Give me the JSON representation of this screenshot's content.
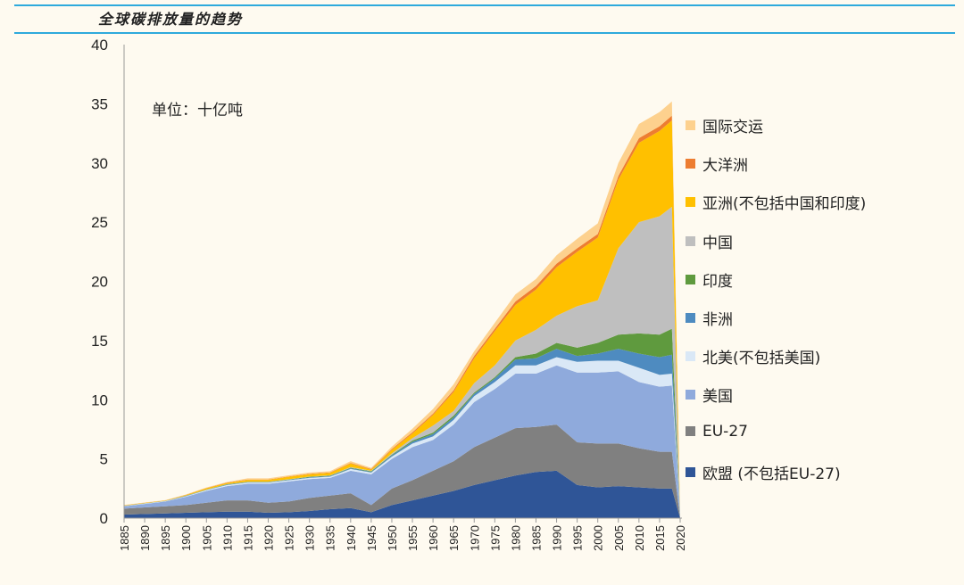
{
  "title": "全球碳排放量的趋势",
  "chart_data": {
    "type": "area",
    "stacked": true,
    "title": "全球碳排放量的趋势",
    "unit_label": "单位：十亿吨",
    "xlabel": "",
    "ylabel": "",
    "ylim": [
      0,
      40
    ],
    "yticks": [
      0,
      5,
      10,
      15,
      20,
      25,
      30,
      35,
      40
    ],
    "xlim": [
      1885,
      2020
    ],
    "xticks": [
      1885,
      1890,
      1895,
      1900,
      1905,
      1910,
      1915,
      1920,
      1925,
      1930,
      1935,
      1940,
      1945,
      1950,
      1955,
      1960,
      1965,
      1970,
      1975,
      1980,
      1985,
      1990,
      1995,
      2000,
      2005,
      2010,
      2015,
      2020
    ],
    "grid": false,
    "legend_position": "right",
    "x": [
      1885,
      1890,
      1895,
      1900,
      1905,
      1910,
      1915,
      1920,
      1925,
      1930,
      1935,
      1940,
      1945,
      1950,
      1955,
      1960,
      1965,
      1970,
      1975,
      1980,
      1985,
      1990,
      1995,
      2000,
      2005,
      2010,
      2015,
      2018,
      2020
    ],
    "series": [
      {
        "name": "欧盟 (不包括EU-27)",
        "color": "#2f5597",
        "values": [
          0.3,
          0.35,
          0.4,
          0.45,
          0.5,
          0.55,
          0.55,
          0.45,
          0.5,
          0.6,
          0.75,
          0.85,
          0.5,
          1.1,
          1.5,
          1.9,
          2.3,
          2.8,
          3.2,
          3.6,
          3.9,
          4.0,
          2.8,
          2.6,
          2.7,
          2.6,
          2.5,
          2.5,
          0
        ]
      },
      {
        "name": "EU-27",
        "color": "#808080",
        "values": [
          0.5,
          0.55,
          0.6,
          0.65,
          0.8,
          0.95,
          0.95,
          0.85,
          0.9,
          1.1,
          1.15,
          1.25,
          0.6,
          1.4,
          1.7,
          2.1,
          2.5,
          3.2,
          3.6,
          4.0,
          3.8,
          3.9,
          3.6,
          3.7,
          3.6,
          3.3,
          3.1,
          3.1,
          0
        ]
      },
      {
        "name": "美国",
        "color": "#8faadc",
        "values": [
          0.2,
          0.3,
          0.4,
          0.7,
          1.0,
          1.2,
          1.4,
          1.6,
          1.7,
          1.6,
          1.5,
          1.9,
          2.6,
          2.5,
          2.8,
          2.6,
          3.1,
          3.8,
          4.1,
          4.6,
          4.5,
          5.0,
          5.9,
          6.0,
          6.1,
          5.6,
          5.5,
          5.6,
          0
        ]
      },
      {
        "name": "北美(不包括美国)",
        "color": "#dae8f6",
        "values": [
          0.02,
          0.03,
          0.03,
          0.05,
          0.07,
          0.1,
          0.1,
          0.1,
          0.1,
          0.1,
          0.1,
          0.15,
          0.15,
          0.2,
          0.3,
          0.3,
          0.4,
          0.5,
          0.6,
          0.7,
          0.7,
          0.7,
          0.9,
          1.0,
          0.9,
          1.2,
          1.0,
          1.0,
          0
        ]
      },
      {
        "name": "非洲",
        "color": "#4e8bc0",
        "values": [
          0.01,
          0.01,
          0.01,
          0.02,
          0.02,
          0.03,
          0.03,
          0.03,
          0.04,
          0.05,
          0.05,
          0.06,
          0.06,
          0.1,
          0.15,
          0.2,
          0.2,
          0.2,
          0.3,
          0.5,
          0.6,
          0.7,
          0.5,
          0.6,
          1.0,
          1.2,
          1.5,
          1.6,
          0
        ]
      },
      {
        "name": "印度",
        "color": "#5f9a3e",
        "values": [
          0.01,
          0.01,
          0.01,
          0.02,
          0.02,
          0.03,
          0.03,
          0.03,
          0.03,
          0.04,
          0.04,
          0.05,
          0.05,
          0.06,
          0.1,
          0.12,
          0.15,
          0.1,
          0.1,
          0.2,
          0.4,
          0.5,
          0.7,
          0.9,
          1.2,
          1.7,
          1.9,
          2.2,
          0
        ]
      },
      {
        "name": "中国",
        "color": "#bfbfbf",
        "values": [
          0.01,
          0.01,
          0.01,
          0.01,
          0.01,
          0.01,
          0.02,
          0.02,
          0.02,
          0.02,
          0.03,
          0.05,
          0.04,
          0.1,
          0.2,
          0.6,
          0.4,
          0.8,
          1.0,
          1.4,
          2.0,
          2.3,
          3.5,
          3.6,
          7.3,
          9.4,
          10.0,
          10.3,
          0
        ]
      },
      {
        "name": "亚洲(不包括中国和印度)",
        "color": "#ffc000",
        "values": [
          0.03,
          0.03,
          0.03,
          0.05,
          0.1,
          0.1,
          0.15,
          0.15,
          0.2,
          0.2,
          0.2,
          0.3,
          0.1,
          0.3,
          0.4,
          0.9,
          1.6,
          2.1,
          2.9,
          3.0,
          3.4,
          4.1,
          4.6,
          5.3,
          5.8,
          6.7,
          7.2,
          7.3,
          0
        ]
      },
      {
        "name": "大洋洲",
        "color": "#ed7d31",
        "values": [
          0.01,
          0.01,
          0.01,
          0.02,
          0.02,
          0.03,
          0.03,
          0.03,
          0.03,
          0.04,
          0.04,
          0.05,
          0.05,
          0.08,
          0.1,
          0.1,
          0.15,
          0.2,
          0.2,
          0.3,
          0.3,
          0.3,
          0.3,
          0.3,
          0.3,
          0.4,
          0.4,
          0.4,
          0
        ]
      },
      {
        "name": "国际交运",
        "color": "#fdd18e",
        "values": [
          0.02,
          0.02,
          0.02,
          0.03,
          0.05,
          0.05,
          0.1,
          0.1,
          0.1,
          0.1,
          0.1,
          0.15,
          0.1,
          0.2,
          0.3,
          0.4,
          0.5,
          0.4,
          0.5,
          0.6,
          0.6,
          0.7,
          0.8,
          0.9,
          1.1,
          1.2,
          1.2,
          1.2,
          0
        ]
      }
    ]
  }
}
